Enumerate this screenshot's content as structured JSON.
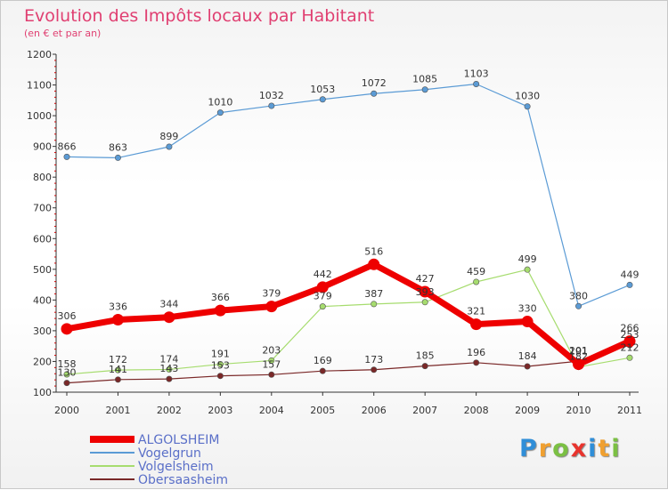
{
  "chart_data": {
    "type": "line",
    "title": "Evolution des Impôts locaux par Habitant",
    "subtitle": "(en € et par an)",
    "xlabel": "",
    "ylabel": "",
    "ylim": [
      100,
      1200
    ],
    "yticks": [
      100,
      200,
      300,
      400,
      500,
      600,
      700,
      800,
      900,
      1000,
      1100,
      1200
    ],
    "categories": [
      "2000",
      "2001",
      "2002",
      "2003",
      "2004",
      "2005",
      "2006",
      "2007",
      "2008",
      "2009",
      "2010",
      "2011"
    ],
    "series": [
      {
        "name": "Vogelgrun",
        "color": "#5b9bd5",
        "values": [
          866,
          863,
          899,
          1010,
          1032,
          1053,
          1072,
          1085,
          1103,
          1030,
          380,
          449
        ]
      },
      {
        "name": "Volgelsheim",
        "color": "#a6dc6e",
        "values": [
          158,
          172,
          174,
          191,
          203,
          379,
          387,
          393,
          459,
          499,
          182,
          212
        ]
      },
      {
        "name": "Obersaasheim",
        "color": "#7a2828",
        "values": [
          130,
          141,
          143,
          153,
          157,
          169,
          173,
          185,
          196,
          184,
          201,
          253
        ]
      },
      {
        "name": "ALGOLSHEIM",
        "color": "#ee0000",
        "values": [
          306,
          336,
          344,
          366,
          379,
          442,
          516,
          427,
          321,
          330,
          191,
          266
        ]
      }
    ],
    "legend_position": "bottom-left",
    "grid": false
  },
  "logo": {
    "text": "Proxiti",
    "letters": [
      "P",
      "r",
      "o",
      "x",
      "i",
      "t",
      "i"
    ],
    "colors": [
      "#2f8ed8",
      "#f0a030",
      "#7bc043",
      "#e8342e",
      "#2f8ed8",
      "#f0a030",
      "#7bc043"
    ]
  }
}
